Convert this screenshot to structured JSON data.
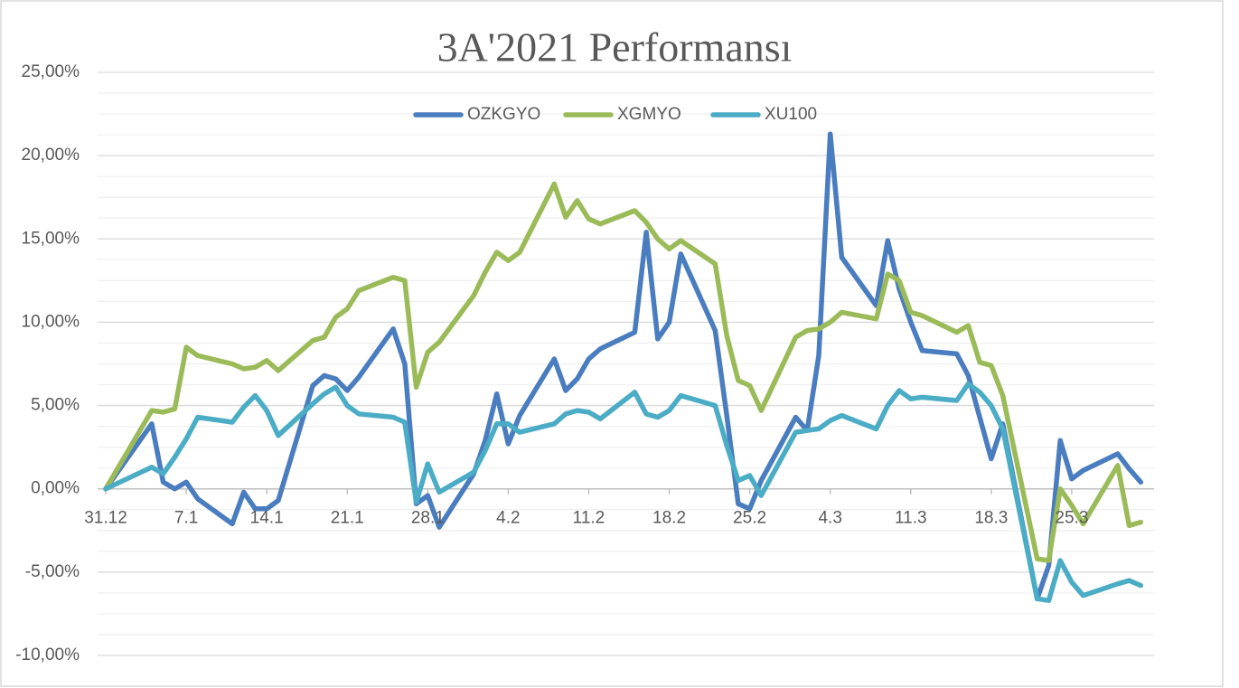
{
  "chart_data": {
    "type": "line",
    "title": "3A'2021 Performansı",
    "x": [
      0,
      4,
      5,
      6,
      7,
      8,
      11,
      12,
      13,
      14,
      15,
      18,
      19,
      20,
      21,
      22,
      25,
      26,
      27,
      28,
      29,
      32,
      33,
      34,
      35,
      36,
      39,
      40,
      41,
      42,
      43,
      46,
      47,
      48,
      49,
      50,
      53,
      54,
      55,
      56,
      57,
      60,
      61,
      62,
      63,
      64,
      67,
      68,
      69,
      70,
      71,
      74,
      75,
      76,
      77,
      78,
      81,
      82,
      83,
      84,
      85,
      88,
      89,
      90
    ],
    "xlim": [
      0,
      91
    ],
    "xticks": [
      {
        "value": 0,
        "label": "31.12"
      },
      {
        "value": 7,
        "label": "7.1"
      },
      {
        "value": 14,
        "label": "14.1"
      },
      {
        "value": 21,
        "label": "21.1"
      },
      {
        "value": 28,
        "label": "28.1"
      },
      {
        "value": 35,
        "label": "4.2"
      },
      {
        "value": 42,
        "label": "11.2"
      },
      {
        "value": 49,
        "label": "18.2"
      },
      {
        "value": 56,
        "label": "25.2"
      },
      {
        "value": 63,
        "label": "4.3"
      },
      {
        "value": 70,
        "label": "11.3"
      },
      {
        "value": 77,
        "label": "18.3"
      },
      {
        "value": 84,
        "label": "25.3"
      }
    ],
    "ylim": [
      -10,
      25
    ],
    "yticks": [
      {
        "value": -10,
        "label": "-10,00%"
      },
      {
        "value": -5,
        "label": "-5,00%"
      },
      {
        "value": 0,
        "label": "0,00%"
      },
      {
        "value": 5,
        "label": "5,00%"
      },
      {
        "value": 10,
        "label": "10,00%"
      },
      {
        "value": 15,
        "label": "15,00%"
      },
      {
        "value": 20,
        "label": "20,00%"
      },
      {
        "value": 25,
        "label": "25,00%"
      }
    ],
    "grid": true,
    "minor_grid_per_major": 4,
    "legend": "top",
    "series": [
      {
        "name": "OZKGYO",
        "color": "#4a7dbf",
        "values": [
          0,
          3.9,
          0.4,
          0.0,
          0.4,
          -0.6,
          -2.1,
          -0.2,
          -1.2,
          -1.2,
          -0.7,
          6.2,
          6.8,
          6.6,
          5.9,
          6.7,
          9.6,
          7.5,
          -0.9,
          -0.4,
          -2.3,
          0.9,
          2.9,
          5.7,
          2.7,
          4.4,
          7.8,
          5.9,
          6.6,
          7.8,
          8.4,
          9.4,
          15.4,
          9.0,
          10.0,
          14.1,
          9.5,
          4.4,
          -0.9,
          -1.2,
          0.5,
          4.3,
          3.5,
          8.0,
          21.3,
          13.9,
          11.0,
          14.9,
          12.0,
          10.0,
          8.3,
          8.1,
          6.8,
          4.3,
          1.8,
          3.9,
          -6.6,
          -4.6,
          2.9,
          0.6,
          1.1,
          2.1,
          1.2,
          0.4
        ]
      },
      {
        "name": "XGMYO",
        "color": "#9bbb59",
        "values": [
          0,
          4.7,
          4.6,
          4.8,
          8.5,
          8.0,
          7.5,
          7.2,
          7.3,
          7.7,
          7.1,
          8.9,
          9.1,
          10.3,
          10.8,
          11.9,
          12.7,
          12.5,
          6.1,
          8.2,
          8.8,
          11.6,
          13.0,
          14.2,
          13.7,
          14.2,
          18.3,
          16.3,
          17.3,
          16.2,
          15.9,
          16.7,
          16.0,
          15.0,
          14.4,
          14.9,
          13.5,
          9.2,
          6.5,
          6.2,
          4.7,
          9.1,
          9.5,
          9.6,
          10.0,
          10.6,
          10.2,
          12.9,
          12.5,
          10.6,
          10.4,
          9.4,
          9.8,
          7.6,
          7.4,
          5.6,
          -4.2,
          -4.3,
          0.0,
          -1.0,
          -2.1,
          1.4,
          -2.2,
          -2.0
        ]
      },
      {
        "name": "XU100",
        "color": "#4bacc6",
        "values": [
          0,
          1.3,
          0.9,
          1.9,
          3.0,
          4.3,
          4.0,
          4.9,
          5.6,
          4.7,
          3.2,
          5.1,
          5.7,
          6.1,
          5.0,
          4.5,
          4.3,
          4.0,
          -0.8,
          1.5,
          -0.2,
          1.0,
          2.3,
          3.9,
          3.9,
          3.4,
          3.9,
          4.5,
          4.7,
          4.6,
          4.2,
          5.8,
          4.5,
          4.3,
          4.7,
          5.6,
          5.0,
          2.6,
          0.5,
          0.8,
          -0.4,
          3.4,
          3.5,
          3.6,
          4.1,
          4.4,
          3.6,
          5.0,
          5.9,
          5.4,
          5.5,
          5.3,
          6.3,
          5.8,
          5.0,
          3.6,
          -6.6,
          -6.7,
          -4.3,
          -5.6,
          -6.4,
          -5.7,
          -5.5,
          -5.8
        ]
      }
    ]
  }
}
